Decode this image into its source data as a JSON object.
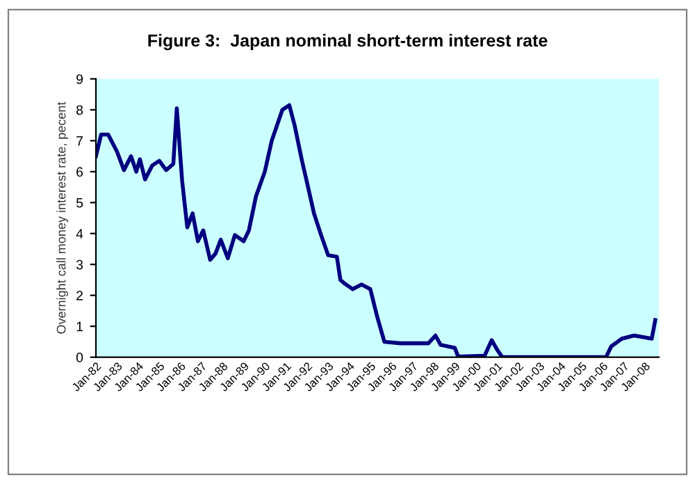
{
  "chart_data": {
    "type": "line",
    "title": "Figure 3:  Japan nominal short-term interest rate",
    "ylabel": "Overnight call money interest rate, pecent",
    "x": [
      "1982-01",
      "1982-04",
      "1982-08",
      "1983-01",
      "1983-05",
      "1983-09",
      "1983-12",
      "1984-02",
      "1984-05",
      "1984-09",
      "1985-01",
      "1985-05",
      "1985-09",
      "1985-11",
      "1986-02",
      "1986-05",
      "1986-08",
      "1986-11",
      "1987-02",
      "1987-06",
      "1987-09",
      "1987-12",
      "1988-04",
      "1988-08",
      "1989-01",
      "1989-04",
      "1989-08",
      "1990-01",
      "1990-05",
      "1990-11",
      "1991-03",
      "1991-06",
      "1991-10",
      "1992-02",
      "1992-05",
      "1992-09",
      "1993-01",
      "1993-06",
      "1993-08",
      "1993-10",
      "1994-03",
      "1994-08",
      "1995-01",
      "1995-05",
      "1995-09",
      "1996-06",
      "1997-10",
      "1998-02",
      "1998-05",
      "1999-01",
      "1999-03",
      "2000-06",
      "2000-10",
      "2001-01",
      "2001-04",
      "2006-03",
      "2006-06",
      "2006-12",
      "2007-07",
      "2008-05",
      "2008-07"
    ],
    "series": [
      {
        "color": "#000080",
        "values": [
          6.5,
          7.2,
          7.2,
          6.65,
          6.05,
          6.5,
          6.0,
          6.4,
          5.75,
          6.2,
          6.35,
          6.05,
          6.25,
          8.05,
          5.7,
          4.2,
          4.65,
          3.75,
          4.1,
          3.15,
          3.35,
          3.8,
          3.2,
          3.95,
          3.75,
          4.1,
          5.2,
          6.0,
          7.0,
          8.0,
          8.15,
          7.5,
          6.4,
          5.4,
          4.65,
          3.95,
          3.3,
          3.25,
          2.5,
          2.4,
          2.2,
          2.35,
          2.2,
          1.3,
          0.5,
          0.45,
          0.45,
          0.7,
          0.4,
          0.3,
          0.02,
          0.05,
          0.55,
          0.25,
          0.0,
          0.0,
          0.35,
          0.6,
          0.7,
          0.6,
          1.2
        ]
      }
    ],
    "xlim": [
      "1982-01",
      "2008-09"
    ],
    "xticks": [
      {
        "value": "1982-01",
        "label": "Jan-82"
      },
      {
        "value": "1983-01",
        "label": "Jan-83"
      },
      {
        "value": "1984-01",
        "label": "Jan-84"
      },
      {
        "value": "1985-01",
        "label": "Jan-85"
      },
      {
        "value": "1986-01",
        "label": "Jan-86"
      },
      {
        "value": "1987-01",
        "label": "Jan-87"
      },
      {
        "value": "1988-01",
        "label": "Jan-88"
      },
      {
        "value": "1989-01",
        "label": "Jan-89"
      },
      {
        "value": "1990-01",
        "label": "Jan-90"
      },
      {
        "value": "1991-01",
        "label": "Jan-91"
      },
      {
        "value": "1992-01",
        "label": "Jan-92"
      },
      {
        "value": "1993-01",
        "label": "Jan-93"
      },
      {
        "value": "1994-01",
        "label": "Jan-94"
      },
      {
        "value": "1995-01",
        "label": "Jan-95"
      },
      {
        "value": "1996-01",
        "label": "Jan-96"
      },
      {
        "value": "1997-01",
        "label": "Jan-97"
      },
      {
        "value": "1998-01",
        "label": "Jan-98"
      },
      {
        "value": "1999-01",
        "label": "Jan-99"
      },
      {
        "value": "2000-01",
        "label": "Jan-00"
      },
      {
        "value": "2001-01",
        "label": "Jan-01"
      },
      {
        "value": "2002-01",
        "label": "Jan-02"
      },
      {
        "value": "2003-01",
        "label": "Jan-03"
      },
      {
        "value": "2004-01",
        "label": "Jan-04"
      },
      {
        "value": "2005-01",
        "label": "Jan-05"
      },
      {
        "value": "2006-01",
        "label": "Jan-06"
      },
      {
        "value": "2007-01",
        "label": "Jan-07"
      },
      {
        "value": "2008-01",
        "label": "Jan-08"
      }
    ],
    "ylim": [
      0,
      9
    ],
    "yticks": [
      0,
      1,
      2,
      3,
      4,
      5,
      6,
      7,
      8,
      9
    ],
    "grid": false,
    "marker": "none",
    "line_style": "solid"
  }
}
